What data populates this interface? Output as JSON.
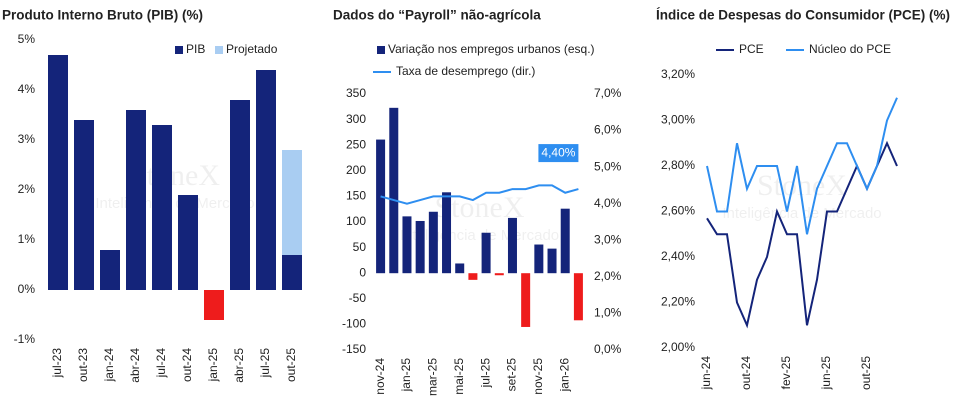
{
  "watermark": {
    "brand": "StoneX",
    "tagline": "Inteligência de Mercado"
  },
  "chart_data": [
    {
      "type": "bar",
      "title": "Produto Interno Bruto (PIB)  (%)",
      "stacked": true,
      "categories": [
        "jul-23",
        "out-23",
        "jan-24",
        "abr-24",
        "jul-24",
        "out-24",
        "jan-25",
        "abr-25",
        "jul-25",
        "out-25"
      ],
      "series": [
        {
          "name": "PIB",
          "color": "#14247a",
          "negative_color": "#ee1c1c",
          "values": [
            4.7,
            3.4,
            0.8,
            3.6,
            3.3,
            1.9,
            -0.6,
            3.8,
            4.4,
            0.7
          ]
        },
        {
          "name": "Projetado",
          "color": "#a9cdf2",
          "values": [
            null,
            null,
            null,
            null,
            null,
            null,
            null,
            null,
            null,
            2.1
          ]
        }
      ],
      "ylim": [
        -1,
        5
      ],
      "yticks": [
        {
          "value": -1,
          "label": "-1%"
        },
        {
          "value": 0,
          "label": "0%"
        },
        {
          "value": 1,
          "label": "1%"
        },
        {
          "value": 2,
          "label": "2%"
        },
        {
          "value": 3,
          "label": "3%"
        },
        {
          "value": 4,
          "label": "4%"
        },
        {
          "value": 5,
          "label": "5%"
        }
      ],
      "grid": false
    },
    {
      "type": "bar-line",
      "title": "Dados do “Payroll” não-agrícola",
      "categories": [
        "nov-24",
        null,
        "jan-25",
        null,
        "mar-25",
        null,
        "mai-25",
        null,
        "jul-25",
        null,
        "set-25",
        null,
        "nov-25",
        null,
        "jan-26",
        null
      ],
      "series": [
        {
          "name": "Variação nos empregos urbanos (esq.)",
          "color": "#14247a",
          "negative_color": "#ee1c1c",
          "values": [
            261,
            323,
            111,
            102,
            120,
            158,
            19,
            -13,
            79,
            -4,
            108,
            -105,
            56,
            48,
            126,
            -92
          ]
        },
        {
          "name": "Taxa de desemprego (dir.)",
          "color": "#2e8ef0",
          "axis": "y2",
          "values": [
            4.2,
            4.1,
            4.0,
            4.1,
            4.2,
            4.2,
            4.2,
            4.1,
            4.3,
            4.3,
            4.4,
            4.4,
            4.5,
            4.5,
            4.3,
            4.4
          ]
        }
      ],
      "annotation": "4,40%",
      "ylim": [
        -150,
        350
      ],
      "yticks": [
        -150,
        -100,
        -50,
        0,
        50,
        100,
        150,
        200,
        250,
        300,
        350
      ],
      "y2lim": [
        0,
        7
      ],
      "y2ticks": [
        {
          "value": 0,
          "label": "0,0%"
        },
        {
          "value": 1,
          "label": "1,0%"
        },
        {
          "value": 2,
          "label": "2,0%"
        },
        {
          "value": 3,
          "label": "3,0%"
        },
        {
          "value": 4,
          "label": "4,0%"
        },
        {
          "value": 5,
          "label": "5,0%"
        },
        {
          "value": 6,
          "label": "6,0%"
        },
        {
          "value": 7,
          "label": "7,0%"
        }
      ],
      "grid": false
    },
    {
      "type": "line",
      "title": "Índice de Despesas do Consumidor (PCE) (%)",
      "categories": [
        "jun-24",
        null,
        null,
        null,
        "out-24",
        null,
        null,
        null,
        "fev-25",
        null,
        null,
        null,
        "jun-25",
        null,
        null,
        null,
        "out-25",
        null,
        null,
        null
      ],
      "series": [
        {
          "name": "PCE",
          "color": "#14247a",
          "values": [
            2.57,
            2.5,
            2.5,
            2.2,
            2.1,
            2.3,
            2.4,
            2.6,
            2.5,
            2.5,
            2.1,
            2.3,
            2.6,
            2.6,
            2.7,
            2.8,
            2.7,
            2.8,
            2.9,
            2.8
          ]
        },
        {
          "name": "Núcleo do PCE",
          "color": "#2e8ef0",
          "values": [
            2.8,
            2.6,
            2.6,
            2.9,
            2.7,
            2.8,
            2.8,
            2.8,
            2.6,
            2.8,
            2.5,
            2.7,
            2.8,
            2.9,
            2.9,
            2.8,
            2.7,
            2.8,
            3.0,
            3.1
          ]
        }
      ],
      "ylim": [
        2,
        3.3
      ],
      "yticks": [
        {
          "value": 2,
          "label": "2,00%"
        },
        {
          "value": 2.2,
          "label": "2,20%"
        },
        {
          "value": 2.4,
          "label": "2,40%"
        },
        {
          "value": 2.6,
          "label": "2,60%"
        },
        {
          "value": 2.8,
          "label": "2,80%"
        },
        {
          "value": 3,
          "label": "3,00%"
        },
        {
          "value": 3.2,
          "label": "3,20%"
        }
      ],
      "grid": false
    }
  ]
}
